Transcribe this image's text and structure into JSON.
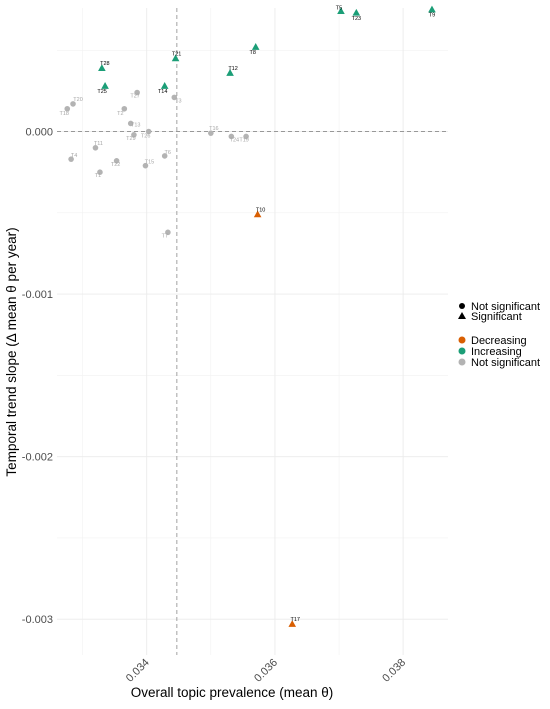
{
  "chart_data": {
    "type": "scatter",
    "xlabel": "Overall topic prevalence (mean θ)",
    "ylabel": "Temporal trend slope (Δ mean θ per year)",
    "xlim": [
      0.0326,
      0.0387
    ],
    "ylim": [
      -0.00322,
      0.00076
    ],
    "x_ticks": [
      {
        "value": 0.034,
        "label": "0.034"
      },
      {
        "value": 0.036,
        "label": "0.036"
      },
      {
        "value": 0.038,
        "label": "0.038"
      }
    ],
    "y_ticks": [
      {
        "value": 0.0,
        "label": "0.000"
      },
      {
        "value": -0.001,
        "label": "-0.001"
      },
      {
        "value": -0.002,
        "label": "-0.002"
      },
      {
        "value": -0.003,
        "label": "-0.003"
      }
    ],
    "reference_lines": {
      "x": 0.03447,
      "y": 0.0
    },
    "grid": true,
    "colors": {
      "Decreasing": "#d95f02",
      "Increasing": "#1b9e77",
      "Not significant": "#b3b3b3"
    },
    "legend": {
      "placement": "right",
      "shape": [
        {
          "label": "Not significant",
          "shape": "circle"
        },
        {
          "label": "Significant",
          "shape": "triangle"
        }
      ],
      "color": [
        {
          "label": "Decreasing",
          "key": "Decreasing"
        },
        {
          "label": "Increasing",
          "key": "Increasing"
        },
        {
          "label": "Not significant",
          "key": "Not significant"
        }
      ]
    },
    "points": [
      {
        "label": "T9",
        "x": 0.03845,
        "y": 0.00075,
        "trend": "Increasing",
        "significant": true
      },
      {
        "label": "T5",
        "x": 0.03703,
        "y": 0.00074,
        "trend": "Increasing",
        "significant": true
      },
      {
        "label": "T23",
        "x": 0.03727,
        "y": 0.00073,
        "trend": "Increasing",
        "significant": true
      },
      {
        "label": "T8",
        "x": 0.0357,
        "y": 0.00052,
        "trend": "Increasing",
        "significant": true
      },
      {
        "label": "T21",
        "x": 0.03445,
        "y": 0.00045,
        "trend": "Increasing",
        "significant": true
      },
      {
        "label": "T28",
        "x": 0.0333,
        "y": 0.00039,
        "trend": "Increasing",
        "significant": true
      },
      {
        "label": "T12",
        "x": 0.0353,
        "y": 0.00036,
        "trend": "Increasing",
        "significant": true
      },
      {
        "label": "T14",
        "x": 0.03428,
        "y": 0.00028,
        "trend": "Increasing",
        "significant": true
      },
      {
        "label": "T25",
        "x": 0.03335,
        "y": 0.00028,
        "trend": "Increasing",
        "significant": true
      },
      {
        "label": "T10",
        "x": 0.03573,
        "y": -0.00051,
        "trend": "Decreasing",
        "significant": true
      },
      {
        "label": "T17",
        "x": 0.03627,
        "y": -0.00303,
        "trend": "Decreasing",
        "significant": true
      },
      {
        "label": "T20",
        "x": 0.03285,
        "y": 0.00017,
        "trend": "Not significant",
        "significant": false
      },
      {
        "label": "T18",
        "x": 0.03276,
        "y": 0.00014,
        "trend": "Not significant",
        "significant": false
      },
      {
        "label": "T27",
        "x": 0.03385,
        "y": 0.00024,
        "trend": "Not significant",
        "significant": false
      },
      {
        "label": "T2",
        "x": 0.03365,
        "y": 0.00014,
        "trend": "Not significant",
        "significant": false
      },
      {
        "label": "T13",
        "x": 0.03375,
        "y": 5e-05,
        "trend": "Not significant",
        "significant": false
      },
      {
        "label": "T3",
        "x": 0.03443,
        "y": 0.00021,
        "trend": "Not significant",
        "significant": false
      },
      {
        "label": "T26",
        "x": 0.03403,
        "y": 0.0,
        "trend": "Not significant",
        "significant": false
      },
      {
        "label": "T29",
        "x": 0.0338,
        "y": -2e-05,
        "trend": "Not significant",
        "significant": false
      },
      {
        "label": "T11",
        "x": 0.0332,
        "y": -0.0001,
        "trend": "Not significant",
        "significant": false
      },
      {
        "label": "T4",
        "x": 0.03282,
        "y": -0.00017,
        "trend": "Not significant",
        "significant": false
      },
      {
        "label": "T22",
        "x": 0.03353,
        "y": -0.00018,
        "trend": "Not significant",
        "significant": false
      },
      {
        "label": "T15",
        "x": 0.03398,
        "y": -0.00021,
        "trend": "Not significant",
        "significant": false
      },
      {
        "label": "T6",
        "x": 0.03428,
        "y": -0.00015,
        "trend": "Not significant",
        "significant": false
      },
      {
        "label": "T1",
        "x": 0.03327,
        "y": -0.00025,
        "trend": "Not significant",
        "significant": false
      },
      {
        "label": "T16",
        "x": 0.035,
        "y": -1e-05,
        "trend": "Not significant",
        "significant": false
      },
      {
        "label": "T24",
        "x": 0.03532,
        "y": -3e-05,
        "trend": "Not significant",
        "significant": false
      },
      {
        "label": "T19",
        "x": 0.03555,
        "y": -3e-05,
        "trend": "Not significant",
        "significant": false
      },
      {
        "label": "T7",
        "x": 0.03433,
        "y": -0.00062,
        "trend": "Not significant",
        "significant": false
      }
    ]
  }
}
